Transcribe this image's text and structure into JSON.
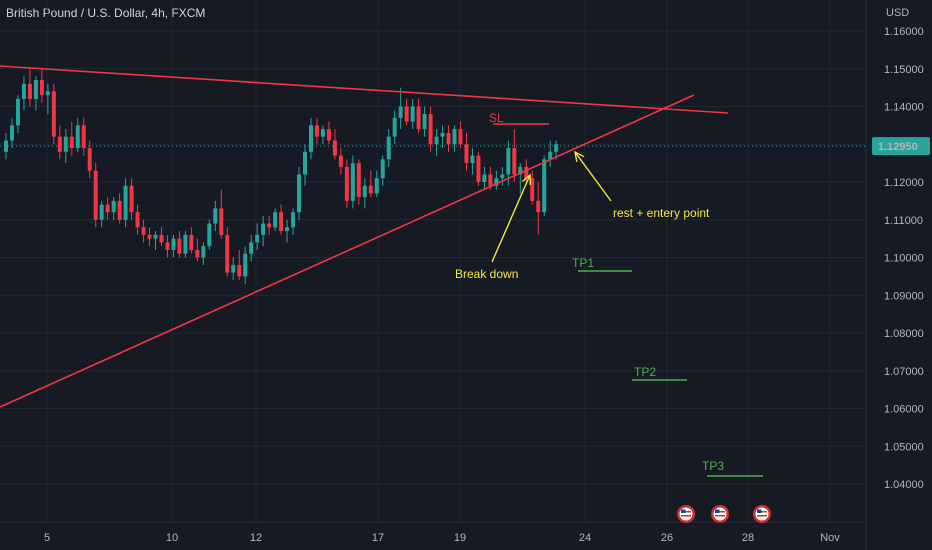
{
  "header": {
    "title": "British Pound / U.S. Dollar, 4h, FXCM"
  },
  "colors": {
    "bg": "#161a25",
    "grid": "#232733",
    "up": "#26a69a",
    "down": "#f23645",
    "line": "#f23645",
    "yellow": "#f5e83c",
    "green": "#4caf50",
    "price_tag": "#26a69a"
  },
  "chart_data": {
    "type": "candlestick",
    "currency": "USD",
    "ylim": [
      1.034,
      1.166
    ],
    "y_ticks": [
      1.16,
      1.15,
      1.14,
      1.13,
      1.12,
      1.11,
      1.1,
      1.09,
      1.08,
      1.07,
      1.06,
      1.05,
      1.04
    ],
    "y_tick_labels": [
      "1.16000",
      "1.15000",
      "1.14000",
      "1.13000",
      "1.12000",
      "1.11000",
      "1.10000",
      "1.09000",
      "1.08000",
      "1.07000",
      "1.06000",
      "1.05000",
      "1.04000"
    ],
    "x_tick_labels": [
      "5",
      "10",
      "12",
      "17",
      "19",
      "24",
      "26",
      "28",
      "Nov"
    ],
    "last_price": 1.1295,
    "last_price_label": "1.12950",
    "candles": [
      [
        1.128,
        1.133,
        1.126,
        1.131
      ],
      [
        1.131,
        1.137,
        1.129,
        1.135
      ],
      [
        1.135,
        1.143,
        1.133,
        1.142
      ],
      [
        1.142,
        1.148,
        1.139,
        1.146
      ],
      [
        1.146,
        1.15,
        1.14,
        1.142
      ],
      [
        1.142,
        1.148,
        1.139,
        1.147
      ],
      [
        1.147,
        1.15,
        1.141,
        1.143
      ],
      [
        1.143,
        1.146,
        1.138,
        1.144
      ],
      [
        1.144,
        1.146,
        1.13,
        1.132
      ],
      [
        1.132,
        1.135,
        1.126,
        1.128
      ],
      [
        1.128,
        1.134,
        1.125,
        1.132
      ],
      [
        1.132,
        1.136,
        1.127,
        1.129
      ],
      [
        1.129,
        1.137,
        1.128,
        1.135
      ],
      [
        1.135,
        1.137,
        1.127,
        1.129
      ],
      [
        1.129,
        1.131,
        1.121,
        1.123
      ],
      [
        1.123,
        1.125,
        1.108,
        1.11
      ],
      [
        1.11,
        1.115,
        1.108,
        1.114
      ],
      [
        1.114,
        1.116,
        1.11,
        1.112
      ],
      [
        1.112,
        1.116,
        1.11,
        1.115
      ],
      [
        1.115,
        1.117,
        1.109,
        1.11
      ],
      [
        1.11,
        1.121,
        1.108,
        1.119
      ],
      [
        1.119,
        1.121,
        1.11,
        1.112
      ],
      [
        1.112,
        1.114,
        1.106,
        1.108
      ],
      [
        1.108,
        1.11,
        1.104,
        1.106
      ],
      [
        1.106,
        1.108,
        1.103,
        1.105
      ],
      [
        1.105,
        1.107,
        1.102,
        1.106
      ],
      [
        1.106,
        1.108,
        1.103,
        1.104
      ],
      [
        1.104,
        1.106,
        1.1,
        1.102
      ],
      [
        1.102,
        1.106,
        1.1,
        1.105
      ],
      [
        1.105,
        1.107,
        1.1,
        1.101
      ],
      [
        1.101,
        1.107,
        1.1,
        1.106
      ],
      [
        1.106,
        1.108,
        1.101,
        1.102
      ],
      [
        1.102,
        1.105,
        1.099,
        1.1
      ],
      [
        1.1,
        1.104,
        1.098,
        1.103
      ],
      [
        1.103,
        1.11,
        1.102,
        1.109
      ],
      [
        1.109,
        1.115,
        1.107,
        1.113
      ],
      [
        1.113,
        1.118,
        1.105,
        1.106
      ],
      [
        1.106,
        1.108,
        1.095,
        1.096
      ],
      [
        1.096,
        1.1,
        1.094,
        1.098
      ],
      [
        1.098,
        1.102,
        1.094,
        1.095
      ],
      [
        1.095,
        1.103,
        1.093,
        1.101
      ],
      [
        1.101,
        1.106,
        1.099,
        1.104
      ],
      [
        1.104,
        1.109,
        1.102,
        1.106
      ],
      [
        1.106,
        1.111,
        1.103,
        1.109
      ],
      [
        1.109,
        1.111,
        1.106,
        1.108
      ],
      [
        1.108,
        1.113,
        1.107,
        1.112
      ],
      [
        1.112,
        1.114,
        1.106,
        1.107
      ],
      [
        1.107,
        1.11,
        1.104,
        1.108
      ],
      [
        1.108,
        1.113,
        1.106,
        1.112
      ],
      [
        1.112,
        1.124,
        1.11,
        1.122
      ],
      [
        1.122,
        1.13,
        1.119,
        1.128
      ],
      [
        1.128,
        1.137,
        1.126,
        1.135
      ],
      [
        1.135,
        1.137,
        1.13,
        1.132
      ],
      [
        1.132,
        1.135,
        1.13,
        1.134
      ],
      [
        1.134,
        1.136,
        1.13,
        1.131
      ],
      [
        1.131,
        1.134,
        1.126,
        1.127
      ],
      [
        1.127,
        1.129,
        1.122,
        1.124
      ],
      [
        1.124,
        1.126,
        1.113,
        1.115
      ],
      [
        1.115,
        1.127,
        1.113,
        1.125
      ],
      [
        1.125,
        1.126,
        1.114,
        1.116
      ],
      [
        1.116,
        1.121,
        1.113,
        1.119
      ],
      [
        1.119,
        1.123,
        1.116,
        1.117
      ],
      [
        1.117,
        1.123,
        1.116,
        1.121
      ],
      [
        1.121,
        1.127,
        1.119,
        1.126
      ],
      [
        1.126,
        1.134,
        1.124,
        1.132
      ],
      [
        1.132,
        1.139,
        1.13,
        1.137
      ],
      [
        1.137,
        1.145,
        1.134,
        1.14
      ],
      [
        1.14,
        1.142,
        1.135,
        1.136
      ],
      [
        1.136,
        1.142,
        1.134,
        1.14
      ],
      [
        1.14,
        1.142,
        1.133,
        1.134
      ],
      [
        1.134,
        1.14,
        1.132,
        1.138
      ],
      [
        1.138,
        1.14,
        1.128,
        1.13
      ],
      [
        1.13,
        1.134,
        1.127,
        1.132
      ],
      [
        1.132,
        1.135,
        1.129,
        1.133
      ],
      [
        1.133,
        1.135,
        1.128,
        1.13
      ],
      [
        1.13,
        1.135,
        1.128,
        1.134
      ],
      [
        1.134,
        1.136,
        1.129,
        1.13
      ],
      [
        1.13,
        1.133,
        1.123,
        1.125
      ],
      [
        1.125,
        1.129,
        1.122,
        1.127
      ],
      [
        1.127,
        1.128,
        1.119,
        1.12
      ],
      [
        1.12,
        1.124,
        1.118,
        1.122
      ],
      [
        1.122,
        1.124,
        1.118,
        1.119
      ],
      [
        1.119,
        1.123,
        1.118,
        1.121
      ],
      [
        1.121,
        1.124,
        1.119,
        1.122
      ],
      [
        1.122,
        1.131,
        1.119,
        1.129
      ],
      [
        1.129,
        1.134,
        1.12,
        1.122
      ],
      [
        1.122,
        1.125,
        1.117,
        1.124
      ],
      [
        1.124,
        1.126,
        1.12,
        1.121
      ],
      [
        1.121,
        1.123,
        1.114,
        1.115
      ],
      [
        1.115,
        1.12,
        1.106,
        1.112
      ],
      [
        1.112,
        1.127,
        1.111,
        1.126
      ],
      [
        1.126,
        1.131,
        1.124,
        1.128
      ],
      [
        1.128,
        1.131,
        1.126,
        1.13
      ]
    ],
    "annotations": [
      {
        "label": "SL",
        "color": "#f23645"
      },
      {
        "label": "TP1",
        "color": "#4caf50"
      },
      {
        "label": "TP2",
        "color": "#4caf50"
      },
      {
        "label": "TP3",
        "color": "#4caf50"
      },
      {
        "label": "Break down",
        "color": "#f5e83c"
      },
      {
        "label": "rest + entery point",
        "color": "#f5e83c"
      }
    ]
  }
}
